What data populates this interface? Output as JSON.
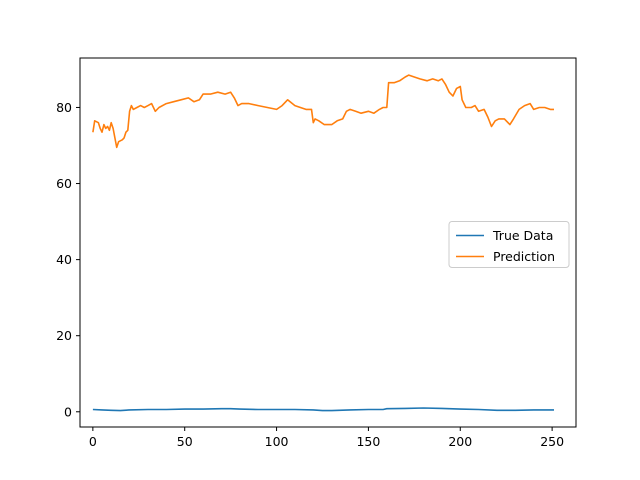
{
  "chart_data": {
    "type": "line",
    "title": "",
    "xlabel": "",
    "ylabel": "",
    "xlim": [
      -7,
      263
    ],
    "ylim": [
      -4,
      93
    ],
    "xticks": [
      0,
      50,
      100,
      150,
      200,
      250
    ],
    "yticks": [
      0,
      20,
      40,
      60,
      80
    ],
    "grid": false,
    "legend": {
      "placement": "center-right",
      "entries": [
        "True Data",
        "Prediction"
      ]
    },
    "series": [
      {
        "name": "True Data",
        "color": "#1f77b4",
        "points": [
          [
            0,
            0.6
          ],
          [
            5,
            0.5
          ],
          [
            10,
            0.4
          ],
          [
            15,
            0.3
          ],
          [
            20,
            0.5
          ],
          [
            30,
            0.6
          ],
          [
            40,
            0.6
          ],
          [
            50,
            0.7
          ],
          [
            60,
            0.7
          ],
          [
            70,
            0.8
          ],
          [
            75,
            0.8
          ],
          [
            80,
            0.7
          ],
          [
            90,
            0.6
          ],
          [
            100,
            0.6
          ],
          [
            110,
            0.6
          ],
          [
            120,
            0.5
          ],
          [
            125,
            0.3
          ],
          [
            130,
            0.3
          ],
          [
            140,
            0.5
          ],
          [
            150,
            0.6
          ],
          [
            158,
            0.6
          ],
          [
            160,
            0.8
          ],
          [
            170,
            0.9
          ],
          [
            180,
            1.0
          ],
          [
            190,
            0.9
          ],
          [
            200,
            0.7
          ],
          [
            210,
            0.6
          ],
          [
            220,
            0.4
          ],
          [
            230,
            0.4
          ],
          [
            240,
            0.5
          ],
          [
            251,
            0.5
          ]
        ]
      },
      {
        "name": "Prediction",
        "color": "#ff7f0e",
        "points": [
          [
            0,
            73.5
          ],
          [
            1,
            76.5
          ],
          [
            3,
            76
          ],
          [
            4,
            74.5
          ],
          [
            5,
            73.5
          ],
          [
            6,
            75.5
          ],
          [
            7,
            74.5
          ],
          [
            8,
            75
          ],
          [
            9,
            74
          ],
          [
            10,
            76
          ],
          [
            11,
            74.5
          ],
          [
            12,
            72
          ],
          [
            13,
            69.5
          ],
          [
            14,
            71
          ],
          [
            16,
            71.5
          ],
          [
            17,
            72
          ],
          [
            18,
            73.5
          ],
          [
            19,
            74
          ],
          [
            20,
            79
          ],
          [
            21,
            80.5
          ],
          [
            22,
            79.5
          ],
          [
            24,
            80
          ],
          [
            26,
            80.5
          ],
          [
            28,
            80
          ],
          [
            30,
            80.5
          ],
          [
            32,
            81
          ],
          [
            34,
            79
          ],
          [
            36,
            80
          ],
          [
            40,
            81
          ],
          [
            44,
            81.5
          ],
          [
            48,
            82
          ],
          [
            52,
            82.5
          ],
          [
            55,
            81.5
          ],
          [
            58,
            82
          ],
          [
            60,
            83.5
          ],
          [
            64,
            83.5
          ],
          [
            68,
            84
          ],
          [
            72,
            83.5
          ],
          [
            75,
            84
          ],
          [
            77,
            82.5
          ],
          [
            79,
            80.5
          ],
          [
            81,
            81
          ],
          [
            85,
            81
          ],
          [
            90,
            80.5
          ],
          [
            95,
            80
          ],
          [
            100,
            79.5
          ],
          [
            103,
            80.5
          ],
          [
            106,
            82
          ],
          [
            110,
            80.5
          ],
          [
            113,
            80
          ],
          [
            116,
            79.5
          ],
          [
            119,
            79.5
          ],
          [
            120,
            76
          ],
          [
            121,
            77
          ],
          [
            123,
            76.5
          ],
          [
            126,
            75.5
          ],
          [
            130,
            75.5
          ],
          [
            133,
            76.5
          ],
          [
            136,
            77
          ],
          [
            138,
            79
          ],
          [
            140,
            79.5
          ],
          [
            143,
            79
          ],
          [
            146,
            78.5
          ],
          [
            150,
            79
          ],
          [
            153,
            78.5
          ],
          [
            156,
            79.5
          ],
          [
            158,
            80
          ],
          [
            160,
            80
          ],
          [
            161,
            86.5
          ],
          [
            164,
            86.5
          ],
          [
            167,
            87
          ],
          [
            170,
            88
          ],
          [
            172,
            88.5
          ],
          [
            175,
            88
          ],
          [
            178,
            87.5
          ],
          [
            182,
            87
          ],
          [
            185,
            87.5
          ],
          [
            188,
            87
          ],
          [
            190,
            87.5
          ],
          [
            192,
            86
          ],
          [
            194,
            84
          ],
          [
            196,
            83
          ],
          [
            198,
            85
          ],
          [
            200,
            85.5
          ],
          [
            201,
            82
          ],
          [
            203,
            80
          ],
          [
            206,
            80
          ],
          [
            208,
            80.5
          ],
          [
            210,
            79
          ],
          [
            213,
            79.5
          ],
          [
            215,
            77.5
          ],
          [
            217,
            75
          ],
          [
            219,
            76.5
          ],
          [
            221,
            77
          ],
          [
            224,
            77
          ],
          [
            227,
            75.5
          ],
          [
            229,
            77
          ],
          [
            232,
            79.5
          ],
          [
            235,
            80.5
          ],
          [
            238,
            81
          ],
          [
            240,
            79.5
          ],
          [
            243,
            80
          ],
          [
            246,
            80
          ],
          [
            249,
            79.5
          ],
          [
            251,
            79.5
          ]
        ]
      }
    ]
  }
}
